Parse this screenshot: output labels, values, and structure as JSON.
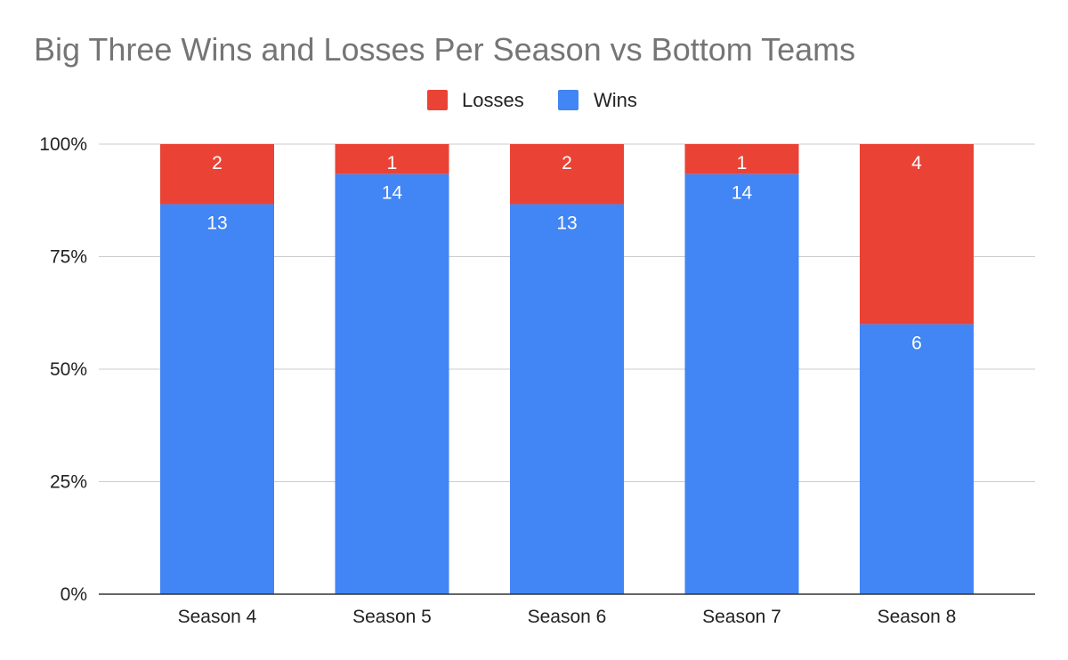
{
  "chart_data": {
    "type": "bar",
    "stacking": "percent",
    "title": "Big Three Wins and Losses Per Season vs Bottom Teams",
    "categories": [
      "Season 4",
      "Season 5",
      "Season 6",
      "Season 7",
      "Season 8"
    ],
    "series": [
      {
        "name": "Wins",
        "color": "#4285f4",
        "values": [
          13,
          14,
          13,
          14,
          6
        ]
      },
      {
        "name": "Losses",
        "color": "#ea4335",
        "values": [
          2,
          1,
          2,
          1,
          4
        ]
      }
    ],
    "legend": {
      "position": "top",
      "entries": [
        {
          "name": "Losses",
          "color": "#ea4335"
        },
        {
          "name": "Wins",
          "color": "#4285f4"
        }
      ]
    },
    "yticks": [
      "0%",
      "25%",
      "50%",
      "75%",
      "100%"
    ],
    "ylim": [
      0,
      100
    ],
    "grid": true,
    "data_labels": true
  }
}
